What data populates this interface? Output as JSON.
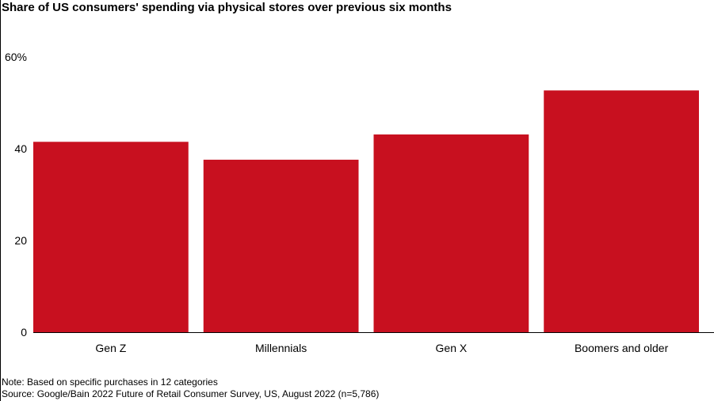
{
  "chart_data": {
    "type": "bar",
    "title": "Share of US consumers' spending via physical stores over previous six months",
    "categories": [
      "Gen Z",
      "Millennials",
      "Gen X",
      "Boomers and older"
    ],
    "values": [
      41.5,
      37.6,
      43.1,
      52.7
    ],
    "ylim": [
      0,
      60
    ],
    "yticks": [
      0,
      20,
      40,
      60
    ],
    "ytick_labels": [
      "0",
      "20",
      "40",
      "60%"
    ],
    "xlabel": "",
    "ylabel": "",
    "grid": false,
    "colors": {
      "bar": "#c8101f",
      "axis": "#000000"
    }
  },
  "notes": {
    "note": "Note: Based on specific purchases in 12 categories",
    "source": "Source: Google/Bain 2022 Future of Retail Consumer Survey, US, August 2022 (n=5,786)"
  }
}
